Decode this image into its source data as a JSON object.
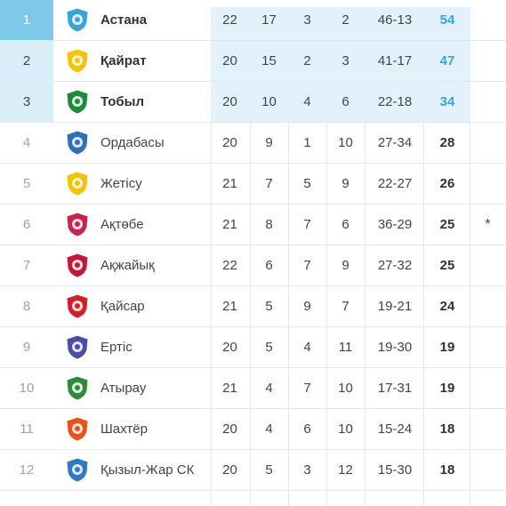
{
  "standings": [
    {
      "pos": "1",
      "team": "Астана",
      "p": "22",
      "w": "17",
      "d": "3",
      "l": "2",
      "gd": "46-13",
      "pts": "54",
      "note": ""
    },
    {
      "pos": "2",
      "team": "Қайрат",
      "p": "20",
      "w": "15",
      "d": "2",
      "l": "3",
      "gd": "41-17",
      "pts": "47",
      "note": ""
    },
    {
      "pos": "3",
      "team": "Тобыл",
      "p": "20",
      "w": "10",
      "d": "4",
      "l": "6",
      "gd": "22-18",
      "pts": "34",
      "note": ""
    },
    {
      "pos": "4",
      "team": "Ордабасы",
      "p": "20",
      "w": "9",
      "d": "1",
      "l": "10",
      "gd": "27-34",
      "pts": "28",
      "note": ""
    },
    {
      "pos": "5",
      "team": "Жетісу",
      "p": "21",
      "w": "7",
      "d": "5",
      "l": "9",
      "gd": "22-27",
      "pts": "26",
      "note": ""
    },
    {
      "pos": "6",
      "team": "Ақтөбе",
      "p": "21",
      "w": "8",
      "d": "7",
      "l": "6",
      "gd": "36-29",
      "pts": "25",
      "note": "*"
    },
    {
      "pos": "7",
      "team": "Ақжайық",
      "p": "22",
      "w": "6",
      "d": "7",
      "l": "9",
      "gd": "27-32",
      "pts": "25",
      "note": ""
    },
    {
      "pos": "8",
      "team": "Қайсар",
      "p": "21",
      "w": "5",
      "d": "9",
      "l": "7",
      "gd": "19-21",
      "pts": "24",
      "note": ""
    },
    {
      "pos": "9",
      "team": "Ертіс",
      "p": "20",
      "w": "5",
      "d": "4",
      "l": "11",
      "gd": "19-30",
      "pts": "19",
      "note": ""
    },
    {
      "pos": "10",
      "team": "Атырау",
      "p": "21",
      "w": "4",
      "d": "7",
      "l": "10",
      "gd": "17-31",
      "pts": "19",
      "note": ""
    },
    {
      "pos": "11",
      "team": "Шахтёр",
      "p": "20",
      "w": "4",
      "d": "6",
      "l": "10",
      "gd": "15-24",
      "pts": "18",
      "note": ""
    },
    {
      "pos": "12",
      "team": "Қызыл-Жар СК",
      "p": "20",
      "w": "5",
      "d": "3",
      "l": "12",
      "gd": "15-30",
      "pts": "18",
      "note": ""
    }
  ],
  "colors": {
    "highlight_pos1": "#7fc8ea",
    "highlight_pos": "#d9eef8",
    "highlight_stats": "#e3f2fa",
    "points_highlight": "#3aa3d8",
    "row_border": "#e4e8ec"
  },
  "logos": [
    {
      "icon": "astana-crest-icon",
      "color": "#3aa3d8"
    },
    {
      "icon": "kairat-crest-icon",
      "color": "#f2c500"
    },
    {
      "icon": "tobol-crest-icon",
      "color": "#1f8a3a"
    },
    {
      "icon": "ordabasy-crest-icon",
      "color": "#2f6fb5"
    },
    {
      "icon": "zhetysu-crest-icon",
      "color": "#f0c400"
    },
    {
      "icon": "aktobe-crest-icon",
      "color": "#c7254e"
    },
    {
      "icon": "akzhayik-crest-icon",
      "color": "#c0183a"
    },
    {
      "icon": "kaisar-crest-icon",
      "color": "#d0202a"
    },
    {
      "icon": "irtysh-crest-icon",
      "color": "#4a4fa5"
    },
    {
      "icon": "atyrau-crest-icon",
      "color": "#2f8a3a"
    },
    {
      "icon": "shakhter-crest-icon",
      "color": "#e2541a"
    },
    {
      "icon": "kyzylzhar-crest-icon",
      "color": "#2f7ac0"
    }
  ]
}
